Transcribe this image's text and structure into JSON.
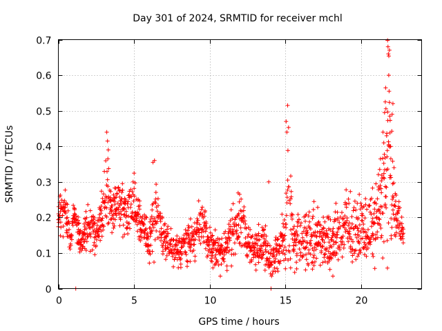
{
  "chart_data": {
    "type": "scatter",
    "title": "Day 301 of 2024, SRMTID for receiver mchl",
    "xlabel": "GPS time / hours",
    "ylabel": "SRMTID / TECUs",
    "xlim": [
      0,
      24
    ],
    "ylim": [
      0,
      0.7
    ],
    "xticks": [
      0,
      5,
      10,
      15,
      20
    ],
    "xtick_labels": [
      "0",
      "5",
      "10",
      "15",
      "20"
    ],
    "yticks": [
      0,
      0.1,
      0.2,
      0.3,
      0.4,
      0.5,
      0.6,
      0.7
    ],
    "ytick_labels": [
      "0",
      "0.1",
      "0.2",
      "0.3",
      "0.4",
      "0.5",
      "0.6",
      "0.7"
    ],
    "grid": true,
    "marker": "plus",
    "color": "#ff0000",
    "series": [
      {
        "name": "SRMTID",
        "profile": {
          "hours": [
            0.0,
            0.5,
            0.8,
            1.0,
            1.5,
            2.0,
            2.5,
            3.0,
            3.3,
            3.5,
            4.0,
            4.5,
            5.0,
            5.5,
            6.0,
            6.3,
            6.5,
            7.0,
            7.5,
            8.0,
            8.5,
            9.0,
            9.5,
            10.0,
            10.5,
            11.0,
            11.5,
            12.0,
            12.5,
            13.0,
            13.5,
            14.0,
            14.5,
            15.0,
            15.2,
            15.5,
            16.0,
            16.5,
            17.0,
            17.5,
            18.0,
            18.5,
            19.0,
            19.5,
            20.0,
            20.5,
            21.0,
            21.3,
            21.6,
            21.8,
            22.0,
            22.2,
            22.5,
            22.8
          ],
          "center_tecu": [
            0.2,
            0.22,
            0.12,
            0.22,
            0.13,
            0.18,
            0.15,
            0.22,
            0.3,
            0.22,
            0.24,
            0.2,
            0.24,
            0.17,
            0.13,
            0.2,
            0.21,
            0.14,
            0.12,
            0.1,
            0.13,
            0.15,
            0.18,
            0.12,
            0.11,
            0.1,
            0.16,
            0.19,
            0.14,
            0.11,
            0.13,
            0.08,
            0.1,
            0.16,
            0.28,
            0.14,
            0.15,
            0.14,
            0.13,
            0.15,
            0.12,
            0.16,
            0.17,
            0.15,
            0.18,
            0.16,
            0.2,
            0.25,
            0.3,
            0.4,
            0.3,
            0.22,
            0.2,
            0.14
          ],
          "spread_tecu": [
            0.05,
            0.07,
            0.03,
            0.04,
            0.05,
            0.06,
            0.06,
            0.08,
            0.12,
            0.06,
            0.07,
            0.08,
            0.07,
            0.06,
            0.06,
            0.1,
            0.06,
            0.05,
            0.05,
            0.04,
            0.05,
            0.06,
            0.06,
            0.05,
            0.05,
            0.05,
            0.07,
            0.09,
            0.06,
            0.05,
            0.07,
            0.05,
            0.07,
            0.09,
            0.2,
            0.08,
            0.08,
            0.08,
            0.09,
            0.08,
            0.08,
            0.08,
            0.1,
            0.08,
            0.08,
            0.08,
            0.1,
            0.15,
            0.25,
            0.28,
            0.18,
            0.06,
            0.06,
            0.05
          ]
        },
        "outliers": [
          {
            "x": 1.15,
            "y": 0.0
          },
          {
            "x": 14.05,
            "y": 0.0
          },
          {
            "x": 15.15,
            "y": 0.515
          },
          {
            "x": 15.05,
            "y": 0.47
          },
          {
            "x": 15.1,
            "y": 0.44
          },
          {
            "x": 3.2,
            "y": 0.44
          },
          {
            "x": 3.25,
            "y": 0.415
          },
          {
            "x": 3.3,
            "y": 0.39
          },
          {
            "x": 21.75,
            "y": 0.698
          },
          {
            "x": 21.78,
            "y": 0.68
          },
          {
            "x": 21.8,
            "y": 0.66
          },
          {
            "x": 21.83,
            "y": 0.6
          },
          {
            "x": 21.85,
            "y": 0.555
          },
          {
            "x": 21.6,
            "y": 0.525
          },
          {
            "x": 22.1,
            "y": 0.52
          },
          {
            "x": 21.55,
            "y": 0.495
          },
          {
            "x": 22.05,
            "y": 0.49
          },
          {
            "x": 21.9,
            "y": 0.485
          },
          {
            "x": 21.45,
            "y": 0.44
          },
          {
            "x": 21.5,
            "y": 0.41
          },
          {
            "x": 21.95,
            "y": 0.4
          },
          {
            "x": 6.35,
            "y": 0.36
          },
          {
            "x": 6.25,
            "y": 0.355
          },
          {
            "x": 13.9,
            "y": 0.3
          },
          {
            "x": 10.7,
            "y": 0.035
          }
        ]
      }
    ]
  }
}
